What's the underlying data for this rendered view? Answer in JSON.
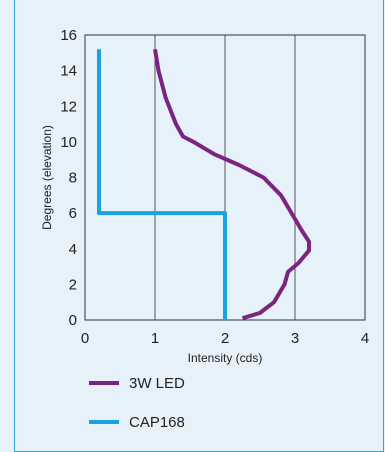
{
  "chart_data": {
    "type": "line",
    "title": "",
    "xlabel": "Intensity (cds)",
    "ylabel": "Degrees (elevation)",
    "xlim": [
      0,
      4
    ],
    "ylim": [
      0,
      16
    ],
    "xticks": [
      0,
      1,
      2,
      3,
      4
    ],
    "yticks": [
      0,
      2,
      4,
      6,
      8,
      10,
      12,
      14,
      16
    ],
    "grid": "vertical",
    "legend": "bottom-left",
    "series": [
      {
        "name": "3W LED",
        "color": "#7b2481",
        "points": [
          [
            2.25,
            0.1
          ],
          [
            2.5,
            0.4
          ],
          [
            2.7,
            1.0
          ],
          [
            2.85,
            2.0
          ],
          [
            2.9,
            2.7
          ],
          [
            3.05,
            3.2
          ],
          [
            3.2,
            3.9
          ],
          [
            3.2,
            4.4
          ],
          [
            3.1,
            5.0
          ],
          [
            2.95,
            6.0
          ],
          [
            2.8,
            7.0
          ],
          [
            2.55,
            8.0
          ],
          [
            2.2,
            8.7
          ],
          [
            1.85,
            9.3
          ],
          [
            1.55,
            10.0
          ],
          [
            1.4,
            10.3
          ],
          [
            1.3,
            11.0
          ],
          [
            1.15,
            12.5
          ],
          [
            1.05,
            14.0
          ],
          [
            1.0,
            15.2
          ]
        ]
      },
      {
        "name": "CAP168",
        "color": "#1aa3dd",
        "points": [
          [
            2.0,
            0.0
          ],
          [
            2.0,
            6.0
          ],
          [
            0.2,
            6.0
          ],
          [
            0.2,
            15.2
          ]
        ]
      }
    ]
  }
}
